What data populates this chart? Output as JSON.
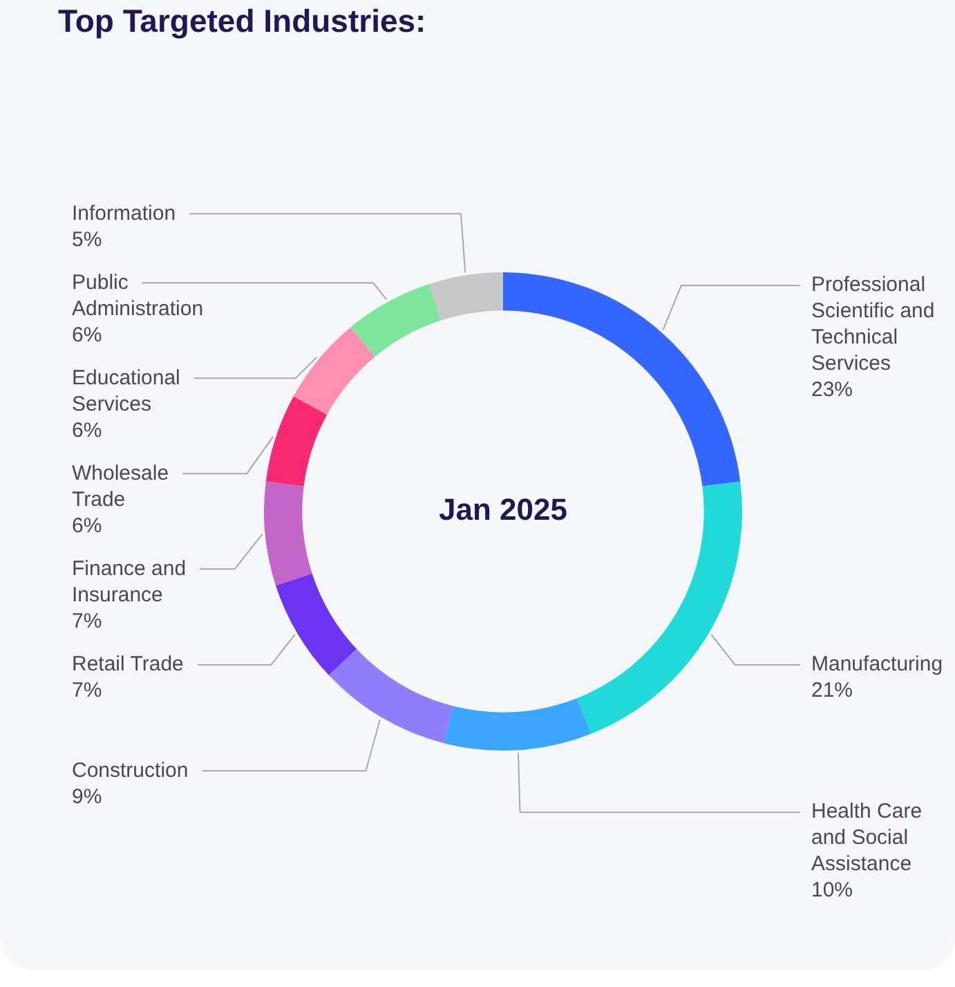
{
  "chart_data": {
    "type": "donut",
    "title": "Top Targeted Industries:",
    "categories": [
      "Professional Scientific and Technical Services",
      "Manufacturing",
      "Health Care and Social Assistance",
      "Construction",
      "Retail Trade",
      "Finance and Insurance",
      "Wholesale Trade",
      "Educational Services",
      "Public Administration",
      "Information"
    ],
    "values": [
      23,
      21,
      10,
      9,
      7,
      7,
      6,
      6,
      6,
      5
    ],
    "value_labels": [
      "23%",
      "21%",
      "10%",
      "9%",
      "7%",
      "7%",
      "6%",
      "6%",
      "6%",
      "5%"
    ],
    "colors": [
      "#3366ff",
      "#22d9d9",
      "#3ba5ff",
      "#8f7dfb",
      "#6c33f0",
      "#c266c9",
      "#fa2a72",
      "#ff8faf",
      "#7ee59b",
      "#c8c8c8"
    ],
    "annotations": [
      "Jan 2025"
    ],
    "legend": false
  }
}
